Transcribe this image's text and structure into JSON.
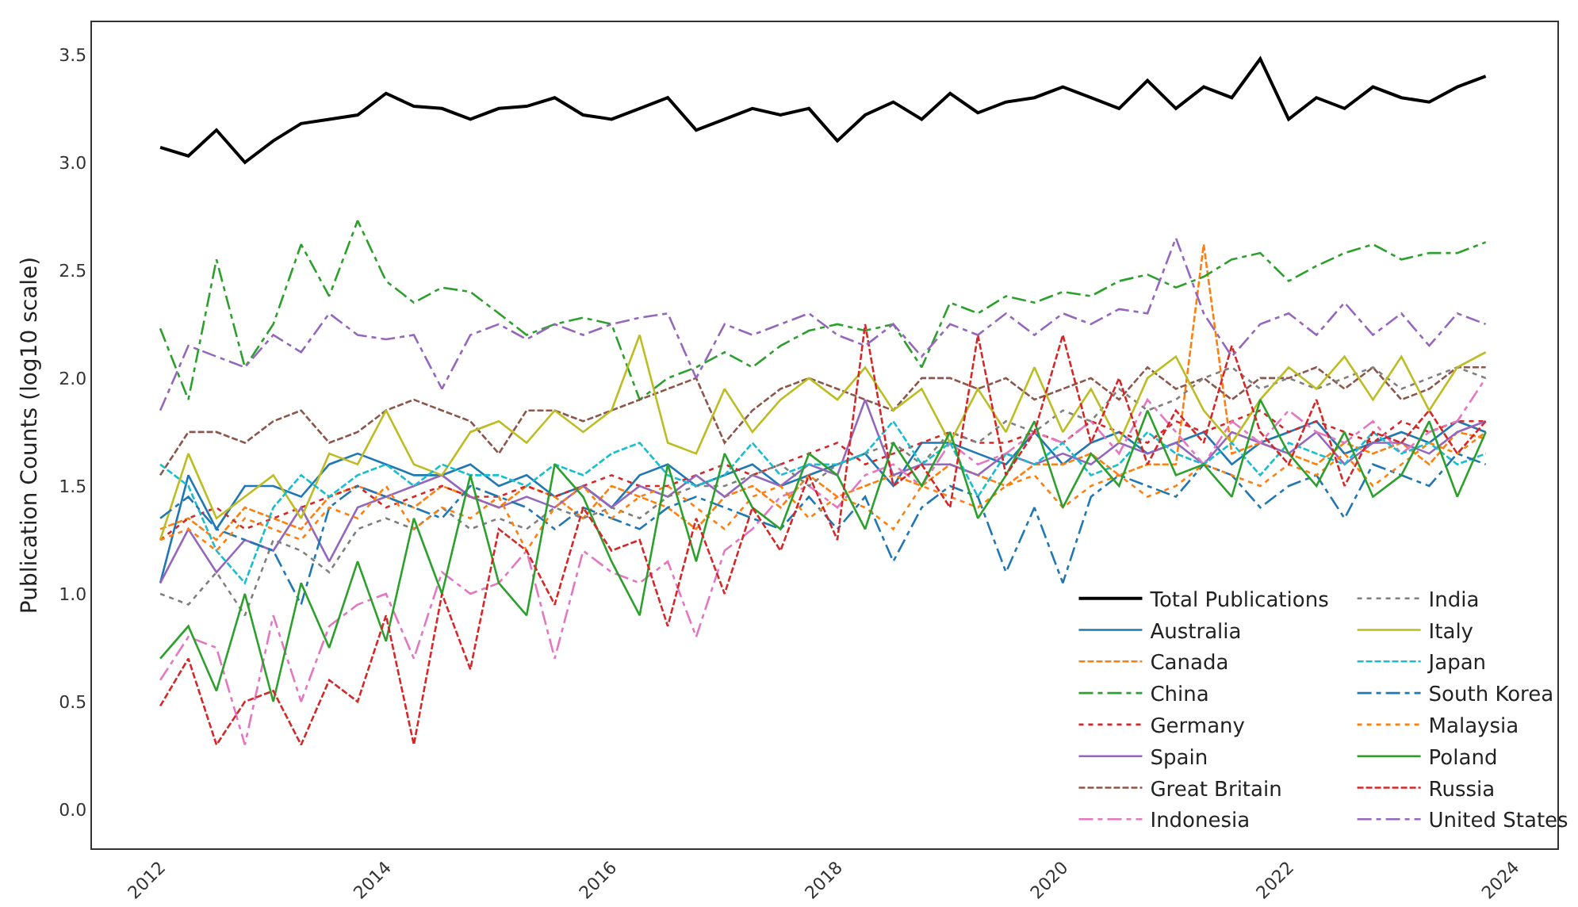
{
  "chart_data": {
    "type": "line",
    "ylabel": "Publication Counts (log10 scale)",
    "x": [
      "2012-01",
      "2012-04",
      "2012-07",
      "2012-10",
      "2013-01",
      "2013-04",
      "2013-07",
      "2013-10",
      "2014-01",
      "2014-04",
      "2014-07",
      "2014-10",
      "2015-01",
      "2015-04",
      "2015-07",
      "2015-10",
      "2016-01",
      "2016-04",
      "2016-07",
      "2016-10",
      "2017-01",
      "2017-04",
      "2017-07",
      "2017-10",
      "2018-01",
      "2018-04",
      "2018-07",
      "2018-10",
      "2019-01",
      "2019-04",
      "2019-07",
      "2019-10",
      "2020-01",
      "2020-04",
      "2020-07",
      "2020-10",
      "2021-01",
      "2021-04",
      "2021-07",
      "2021-10",
      "2022-01",
      "2022-04",
      "2022-07",
      "2022-10",
      "2023-01",
      "2023-04",
      "2023-07",
      "2023-10"
    ],
    "xlim": [
      "2011-05-25",
      "2024-05-20"
    ],
    "xticks": [
      "2012",
      "2014",
      "2016",
      "2018",
      "2020",
      "2022",
      "2024"
    ],
    "ylim": [
      -0.18,
      3.65
    ],
    "yticks": [
      {
        "value": 0,
        "label": "0.0"
      },
      {
        "value": 0.5,
        "label": "0.5"
      },
      {
        "value": 1,
        "label": "1.0"
      },
      {
        "value": 1.5,
        "label": "1.5"
      },
      {
        "value": 2,
        "label": "2.0"
      },
      {
        "value": 2.5,
        "label": "2.5"
      },
      {
        "value": 3,
        "label": "3.0"
      },
      {
        "value": 3.5,
        "label": "3.5"
      }
    ],
    "grid": false,
    "legend": "bottom right",
    "marker": "none",
    "series": [
      {
        "name": "Total Publications",
        "color": "#000000",
        "line_style": "solid",
        "values": [
          3.07,
          3.03,
          3.15,
          3.0,
          3.1,
          3.18,
          3.2,
          3.22,
          3.32,
          3.26,
          3.25,
          3.2,
          3.25,
          3.26,
          3.3,
          3.22,
          3.2,
          3.25,
          3.3,
          3.15,
          3.2,
          3.25,
          3.22,
          3.25,
          3.1,
          3.22,
          3.28,
          3.2,
          3.32,
          3.23,
          3.28,
          3.3,
          3.35,
          3.3,
          3.25,
          3.38,
          3.25,
          3.35,
          3.3,
          3.48,
          3.2,
          3.3,
          3.25,
          3.35,
          3.3,
          3.28,
          3.35,
          3.4
        ]
      },
      {
        "name": "Australia",
        "color": "#1f77b4",
        "line_style": "solid",
        "values": [
          1.05,
          1.55,
          1.3,
          1.5,
          1.5,
          1.45,
          1.6,
          1.65,
          1.6,
          1.55,
          1.55,
          1.6,
          1.5,
          1.55,
          1.45,
          1.5,
          1.4,
          1.55,
          1.6,
          1.5,
          1.55,
          1.6,
          1.5,
          1.55,
          1.6,
          1.65,
          1.5,
          1.7,
          1.7,
          1.65,
          1.6,
          1.75,
          1.6,
          1.7,
          1.75,
          1.65,
          1.7,
          1.75,
          1.6,
          1.7,
          1.75,
          1.8,
          1.65,
          1.7,
          1.75,
          1.7,
          1.8,
          1.75
        ]
      },
      {
        "name": "Canada",
        "color": "#ff7f0e",
        "line_style": "dashed",
        "values": [
          1.3,
          1.35,
          1.25,
          1.4,
          1.35,
          1.3,
          1.45,
          1.5,
          1.45,
          1.4,
          1.5,
          1.45,
          1.4,
          1.5,
          1.45,
          1.35,
          1.5,
          1.45,
          1.4,
          1.3,
          1.45,
          1.5,
          1.4,
          1.55,
          1.45,
          1.5,
          1.55,
          1.5,
          1.6,
          1.55,
          1.5,
          1.6,
          1.6,
          1.65,
          1.55,
          1.6,
          1.6,
          2.62,
          1.65,
          1.7,
          1.65,
          1.6,
          1.7,
          1.65,
          1.7,
          1.6,
          1.75,
          1.72
        ]
      },
      {
        "name": "China",
        "color": "#2ca02c",
        "line_style": "dashdot",
        "values": [
          2.23,
          1.9,
          2.55,
          2.05,
          2.25,
          2.62,
          2.38,
          2.73,
          2.45,
          2.35,
          2.42,
          2.4,
          2.3,
          2.2,
          2.25,
          2.28,
          2.25,
          1.9,
          2.0,
          2.05,
          2.12,
          2.05,
          2.15,
          2.22,
          2.25,
          2.22,
          2.25,
          2.05,
          2.35,
          2.3,
          2.38,
          2.35,
          2.4,
          2.38,
          2.45,
          2.48,
          2.42,
          2.47,
          2.55,
          2.58,
          2.45,
          2.52,
          2.58,
          2.62,
          2.55,
          2.58,
          2.58,
          2.63
        ]
      },
      {
        "name": "Germany",
        "color": "#d62728",
        "line_style": "dotted",
        "values": [
          1.25,
          1.35,
          1.4,
          1.3,
          1.35,
          1.4,
          1.45,
          1.5,
          1.4,
          1.45,
          1.5,
          1.45,
          1.45,
          1.5,
          1.45,
          1.5,
          1.55,
          1.5,
          1.5,
          1.55,
          1.6,
          1.55,
          1.6,
          1.65,
          1.7,
          1.6,
          1.65,
          1.7,
          1.75,
          1.7,
          1.7,
          1.75,
          1.7,
          1.8,
          1.75,
          1.7,
          1.8,
          1.75,
          1.8,
          1.85,
          1.75,
          1.8,
          1.75,
          1.7,
          1.8,
          1.75,
          1.8,
          1.8
        ]
      },
      {
        "name": "Spain",
        "color": "#9467bd",
        "line_style": "solid",
        "values": [
          1.05,
          1.3,
          1.1,
          1.25,
          1.2,
          1.4,
          1.15,
          1.4,
          1.45,
          1.5,
          1.55,
          1.45,
          1.4,
          1.45,
          1.4,
          1.5,
          1.4,
          1.5,
          1.45,
          1.55,
          1.45,
          1.55,
          1.5,
          1.6,
          1.55,
          1.9,
          1.55,
          1.6,
          1.6,
          1.55,
          1.65,
          1.6,
          1.65,
          1.6,
          1.7,
          1.65,
          1.7,
          1.6,
          1.75,
          1.7,
          1.65,
          1.75,
          1.6,
          1.7,
          1.7,
          1.65,
          1.75,
          1.8
        ]
      },
      {
        "name": "Great Britain",
        "color": "#8c564b",
        "line_style": "dashed",
        "values": [
          1.55,
          1.75,
          1.75,
          1.7,
          1.8,
          1.85,
          1.7,
          1.75,
          1.85,
          1.9,
          1.85,
          1.8,
          1.65,
          1.85,
          1.85,
          1.8,
          1.85,
          1.9,
          1.95,
          2.0,
          1.7,
          1.85,
          1.95,
          2.0,
          1.95,
          1.9,
          1.85,
          2.0,
          2.0,
          1.95,
          2.0,
          1.9,
          1.95,
          2.0,
          1.9,
          2.05,
          1.95,
          2.0,
          1.9,
          2.0,
          2.0,
          2.05,
          1.95,
          2.05,
          1.9,
          1.95,
          2.05,
          2.05
        ]
      },
      {
        "name": "Indonesia",
        "color": "#e377c2",
        "line_style": "dashdot",
        "values": [
          0.6,
          0.8,
          0.75,
          0.3,
          0.9,
          0.5,
          0.85,
          0.95,
          1.0,
          0.7,
          1.1,
          1.0,
          1.05,
          1.2,
          0.7,
          1.2,
          1.1,
          1.05,
          1.15,
          0.8,
          1.2,
          1.3,
          1.45,
          1.5,
          1.4,
          1.55,
          1.6,
          1.5,
          1.7,
          1.6,
          1.65,
          1.75,
          1.7,
          1.8,
          1.65,
          1.9,
          1.75,
          1.6,
          1.8,
          1.7,
          1.85,
          1.75,
          1.7,
          1.8,
          1.65,
          1.75,
          1.8,
          2.0
        ]
      },
      {
        "name": "India",
        "color": "#7f7f7f",
        "line_style": "dotted",
        "values": [
          1.0,
          0.95,
          1.1,
          0.9,
          1.25,
          1.2,
          1.1,
          1.3,
          1.35,
          1.3,
          1.4,
          1.3,
          1.35,
          1.3,
          1.4,
          1.35,
          1.4,
          1.35,
          1.45,
          1.5,
          1.5,
          1.55,
          1.6,
          1.5,
          1.6,
          1.65,
          1.7,
          1.6,
          1.75,
          1.7,
          1.8,
          1.75,
          1.85,
          1.8,
          1.95,
          1.85,
          1.9,
          2.0,
          2.05,
          1.95,
          2.0,
          1.95,
          2.0,
          2.05,
          1.95,
          2.0,
          2.05,
          2.0
        ]
      },
      {
        "name": "Italy",
        "color": "#bcbd22",
        "line_style": "solid",
        "values": [
          1.25,
          1.65,
          1.35,
          1.45,
          1.55,
          1.35,
          1.65,
          1.6,
          1.85,
          1.6,
          1.55,
          1.75,
          1.8,
          1.7,
          1.85,
          1.75,
          1.85,
          2.2,
          1.7,
          1.65,
          1.95,
          1.75,
          1.9,
          2.0,
          1.9,
          2.05,
          1.85,
          1.95,
          1.7,
          1.95,
          1.75,
          2.05,
          1.75,
          1.95,
          1.7,
          2.0,
          2.1,
          1.85,
          1.7,
          1.9,
          2.05,
          1.95,
          2.1,
          1.9,
          2.1,
          1.85,
          2.05,
          2.12
        ]
      },
      {
        "name": "Japan",
        "color": "#17becf",
        "line_style": "dashed",
        "values": [
          1.6,
          1.5,
          1.2,
          1.05,
          1.4,
          1.55,
          1.45,
          1.55,
          1.6,
          1.5,
          1.6,
          1.55,
          1.55,
          1.5,
          1.6,
          1.55,
          1.65,
          1.7,
          1.55,
          1.5,
          1.55,
          1.7,
          1.55,
          1.6,
          1.6,
          1.65,
          1.8,
          1.6,
          1.7,
          1.45,
          1.65,
          1.6,
          1.7,
          1.55,
          1.6,
          1.75,
          1.65,
          1.6,
          1.7,
          1.55,
          1.7,
          1.65,
          1.6,
          1.75,
          1.65,
          1.7,
          1.6,
          1.65
        ]
      },
      {
        "name": "South Korea",
        "color": "#1f77b4",
        "line_style": "dashdot",
        "values": [
          1.35,
          1.45,
          1.3,
          1.25,
          1.2,
          0.95,
          1.4,
          1.5,
          1.45,
          1.4,
          1.35,
          1.5,
          1.45,
          1.4,
          1.3,
          1.4,
          1.35,
          1.3,
          1.4,
          1.45,
          1.4,
          1.35,
          1.3,
          1.45,
          1.3,
          1.45,
          1.15,
          1.4,
          1.5,
          1.45,
          1.1,
          1.4,
          1.05,
          1.45,
          1.55,
          1.5,
          1.45,
          1.6,
          1.55,
          1.4,
          1.5,
          1.55,
          1.35,
          1.6,
          1.55,
          1.5,
          1.65,
          1.6
        ]
      },
      {
        "name": "Malaysia",
        "color": "#ff7f0e",
        "line_style": "dotted",
        "values": [
          1.25,
          1.3,
          1.2,
          1.35,
          1.3,
          1.25,
          1.4,
          1.35,
          1.5,
          1.3,
          1.4,
          1.35,
          1.45,
          1.2,
          1.4,
          1.5,
          1.35,
          1.45,
          1.5,
          1.4,
          1.3,
          1.45,
          1.5,
          1.35,
          1.45,
          1.4,
          1.3,
          1.5,
          1.45,
          1.4,
          1.5,
          1.55,
          1.4,
          1.5,
          1.55,
          1.45,
          1.5,
          1.6,
          1.55,
          1.5,
          1.6,
          1.55,
          1.65,
          1.5,
          1.6,
          1.7,
          1.65,
          1.75
        ]
      },
      {
        "name": "Poland",
        "color": "#2ca02c",
        "line_style": "solid",
        "values": [
          0.7,
          0.85,
          0.55,
          1.0,
          0.5,
          1.05,
          0.75,
          1.15,
          0.78,
          1.35,
          1.0,
          1.55,
          1.05,
          0.9,
          1.6,
          1.45,
          1.15,
          0.9,
          1.6,
          1.15,
          1.65,
          1.4,
          1.3,
          1.65,
          1.55,
          1.3,
          1.7,
          1.5,
          1.75,
          1.35,
          1.55,
          1.8,
          1.4,
          1.65,
          1.5,
          1.85,
          1.55,
          1.6,
          1.45,
          1.9,
          1.65,
          1.5,
          1.75,
          1.45,
          1.55,
          1.8,
          1.45,
          1.75
        ]
      },
      {
        "name": "Russia",
        "color": "#d62728",
        "line_style": "dashed",
        "values": [
          0.48,
          0.7,
          0.3,
          0.5,
          0.55,
          0.3,
          0.6,
          0.5,
          0.9,
          0.3,
          1.0,
          0.65,
          1.3,
          1.2,
          0.95,
          1.4,
          1.2,
          1.25,
          0.85,
          1.35,
          1.0,
          1.4,
          1.2,
          1.55,
          1.25,
          2.25,
          1.5,
          1.6,
          1.4,
          2.2,
          1.55,
          1.75,
          2.2,
          1.7,
          2.0,
          1.6,
          1.85,
          1.7,
          2.15,
          1.75,
          1.6,
          1.9,
          1.5,
          1.75,
          1.7,
          1.85,
          1.65,
          1.8
        ]
      },
      {
        "name": "United States",
        "color": "#9467bd",
        "line_style": "dashdot",
        "values": [
          1.85,
          2.15,
          2.1,
          2.05,
          2.2,
          2.12,
          2.3,
          2.2,
          2.18,
          2.2,
          1.95,
          2.2,
          2.25,
          2.18,
          2.25,
          2.2,
          2.25,
          2.28,
          2.3,
          2.0,
          2.25,
          2.2,
          2.25,
          2.3,
          2.2,
          2.15,
          2.25,
          2.1,
          2.25,
          2.2,
          2.3,
          2.2,
          2.3,
          2.25,
          2.32,
          2.3,
          2.65,
          2.3,
          2.1,
          2.25,
          2.3,
          2.2,
          2.35,
          2.2,
          2.3,
          2.15,
          2.3,
          2.25
        ]
      }
    ]
  }
}
